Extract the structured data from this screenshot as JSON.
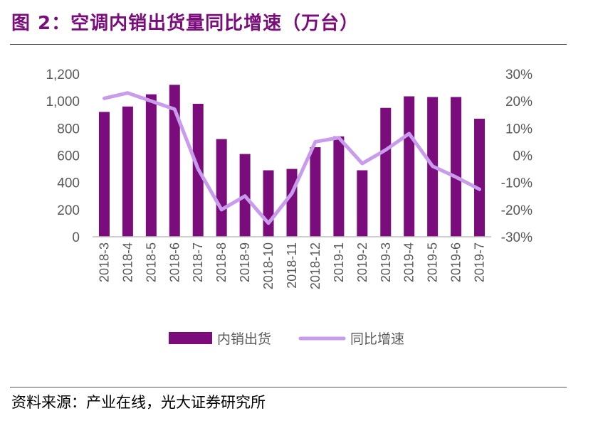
{
  "figure": {
    "title": "图 2：空调内销出货量同比增速（万台）",
    "source": "资料来源：产业在线，光大证券研究所"
  },
  "chart_data": {
    "type": "bar+line",
    "title": "空调内销出货量同比增速（万台）",
    "categories": [
      "2018-3",
      "2018-4",
      "2018-5",
      "2018-6",
      "2018-7",
      "2018-8",
      "2018-9",
      "2018-10",
      "2018-11",
      "2018-12",
      "2019-1",
      "2019-2",
      "2019-3",
      "2019-4",
      "2019-5",
      "2019-6",
      "2019-7"
    ],
    "series": [
      {
        "name": "内销出货",
        "type": "bar",
        "axis": "left",
        "color": "#7B0C7B",
        "values": [
          920,
          960,
          1050,
          1120,
          980,
          720,
          610,
          490,
          500,
          660,
          740,
          490,
          950,
          1035,
          1030,
          1030,
          870
        ]
      },
      {
        "name": "同比增速",
        "type": "line",
        "axis": "right",
        "color": "#C89BEC",
        "values": [
          21,
          23,
          20,
          17,
          -5,
          -20,
          -15,
          -25,
          -14,
          5,
          6.5,
          -3,
          2,
          8,
          -4,
          -8,
          -12.5
        ]
      }
    ],
    "left_axis": {
      "min": 0,
      "max": 1200,
      "step": 200,
      "tick_labels": [
        "0",
        "200",
        "400",
        "600",
        "800",
        "1,000",
        "1,200"
      ]
    },
    "right_axis": {
      "min": -30,
      "max": 30,
      "step": 10,
      "tick_labels": [
        "-30%",
        "-20%",
        "-10%",
        "0%",
        "10%",
        "20%",
        "30%"
      ]
    },
    "legend": {
      "position": "bottom",
      "entries": [
        "内销出货",
        "同比增速"
      ]
    },
    "grid": false
  }
}
